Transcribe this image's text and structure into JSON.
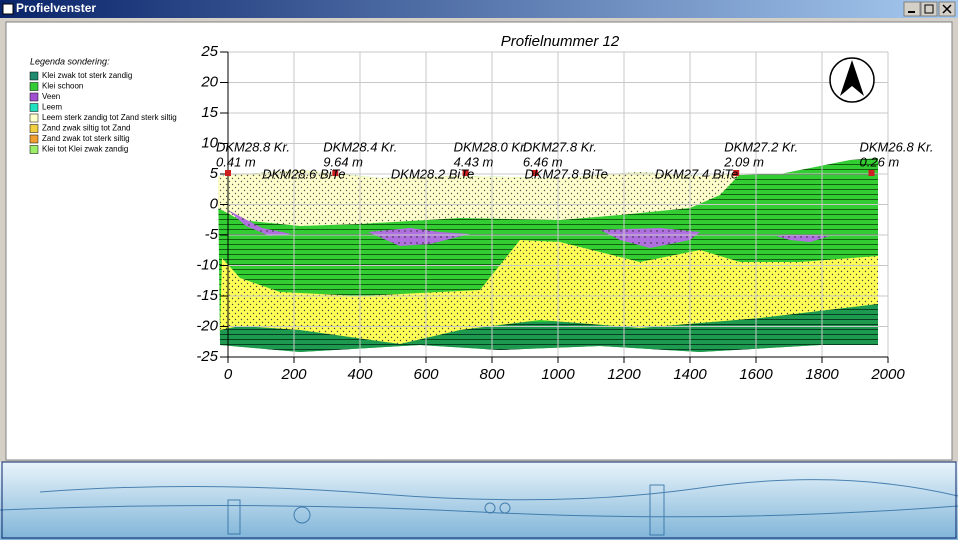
{
  "window": {
    "title": "Profielvenster"
  },
  "legend": {
    "title": "Legenda sondering:",
    "items": [
      {
        "name": "Klei zwak tot sterk zandig",
        "color": "#1e8b6e"
      },
      {
        "name": "Klei schoon",
        "color": "#33cc33"
      },
      {
        "name": "Veen",
        "color": "#a050d0"
      },
      {
        "name": "Leem",
        "color": "#20e0c0"
      },
      {
        "name": "Leem sterk zandig tot Zand sterk siltig",
        "color": "#ffffcc"
      },
      {
        "name": "Zand zwak siltig tot Zand",
        "color": "#f0d040"
      },
      {
        "name": "Zand zwak tot sterk siltig",
        "color": "#f0a030"
      },
      {
        "name": "Klei tot Klei zwak zandig",
        "color": "#99ee66"
      }
    ]
  },
  "chart_data": {
    "type": "profile",
    "title": "Profielnummer 12",
    "xlim": [
      0,
      2000
    ],
    "xticks": [
      0,
      200,
      400,
      600,
      800,
      1000,
      1200,
      1400,
      1600,
      1800,
      2000
    ],
    "ylim": [
      -25,
      25
    ],
    "yticks": [
      25,
      20,
      15,
      10,
      5,
      0,
      -5,
      -10,
      -15,
      -20,
      -25
    ],
    "grid": true,
    "cpt_labels": [
      {
        "name": "DKM28.8 Kr.",
        "depth": "0.41 m",
        "x": 0
      },
      {
        "name": "DKM28.4 Kr.",
        "depth": "9.64 m",
        "x": 325
      },
      {
        "name": "DKM28.0 Kr.",
        "depth": "4.43 m",
        "x": 720
      },
      {
        "name": "DKM27.8 Kr.",
        "depth": "6.46 m",
        "x": 930
      },
      {
        "name": "DKM27.2 Kr.",
        "depth": "2.09 m",
        "x": 1540
      },
      {
        "name": "DKM26.8 Kr.",
        "depth": "0.26 m",
        "x": 1950
      }
    ],
    "bore_labels": [
      {
        "name": "DKM28.6 BiTe",
        "x": 140
      },
      {
        "name": "DKM28.2 BiTe",
        "x": 530
      },
      {
        "name": "DKM27.8 BiTe",
        "x": 935
      },
      {
        "name": "DKM27.4 BiTe",
        "x": 1330
      }
    ]
  }
}
